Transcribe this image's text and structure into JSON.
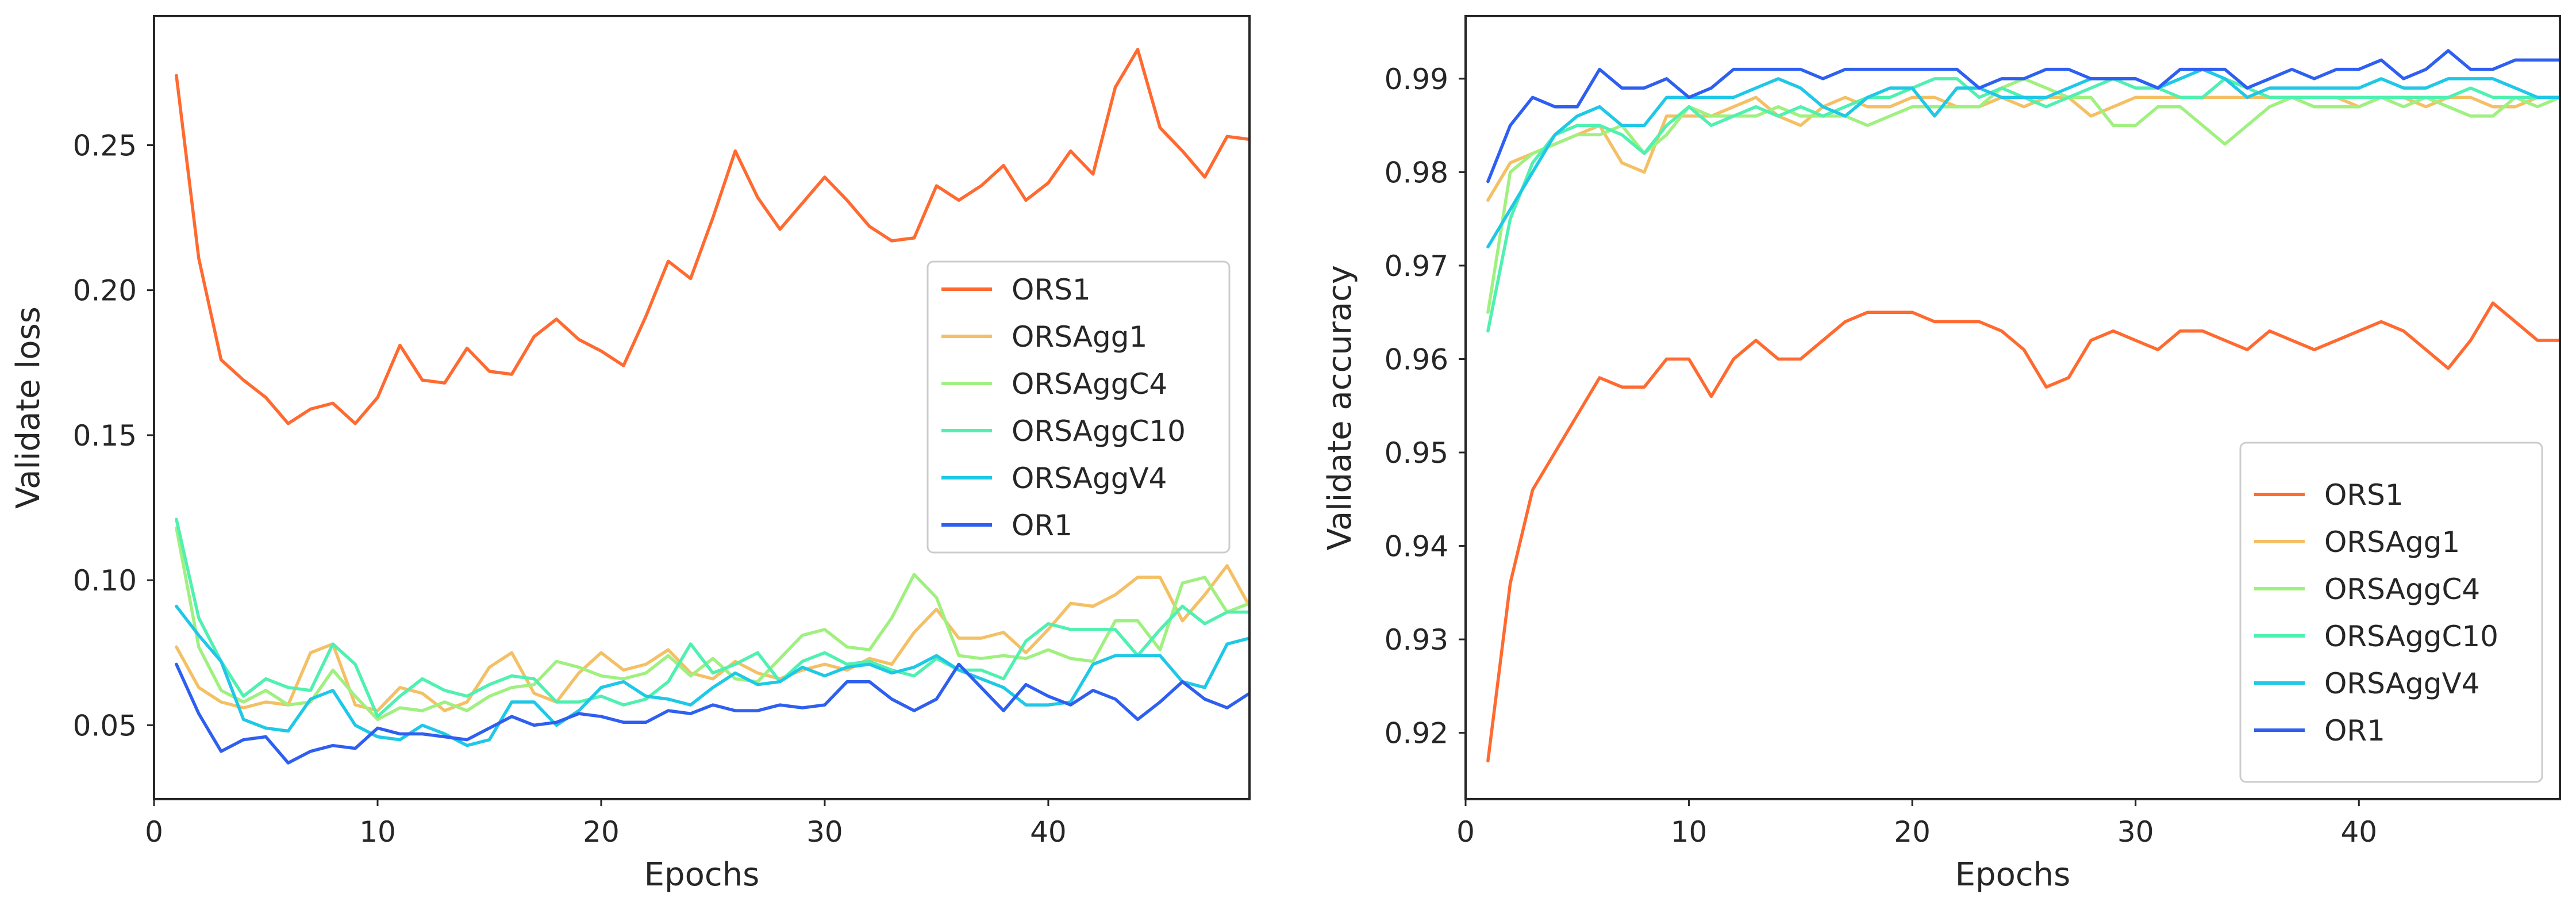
{
  "chart_data": [
    {
      "type": "line",
      "xlabel": "Epochs",
      "ylabel": "Validate loss",
      "xlim": [
        0,
        49
      ],
      "ylim": [
        0.0245,
        0.2945
      ],
      "xticks": [
        0,
        10,
        20,
        30,
        40
      ],
      "yticks": [
        0.05,
        0.1,
        0.15,
        0.2,
        0.25
      ],
      "ytick_labels": [
        "0.05",
        "0.10",
        "0.15",
        "0.20",
        "0.25"
      ],
      "grid": false,
      "legend": "center-right",
      "x": [
        1,
        2,
        3,
        4,
        5,
        6,
        7,
        8,
        9,
        10,
        11,
        12,
        13,
        14,
        15,
        16,
        17,
        18,
        19,
        20,
        21,
        22,
        23,
        24,
        25,
        26,
        27,
        28,
        29,
        30,
        31,
        32,
        33,
        34,
        35,
        36,
        37,
        38,
        39,
        40,
        41,
        42,
        43,
        44,
        45,
        46,
        47,
        48,
        49
      ],
      "series": [
        {
          "name": "ORS1",
          "color": "#ff6a30",
          "values": [
            0.274,
            0.211,
            0.176,
            0.169,
            0.163,
            0.154,
            0.159,
            0.161,
            0.154,
            0.163,
            0.181,
            0.169,
            0.168,
            0.18,
            0.172,
            0.171,
            0.184,
            0.19,
            0.183,
            0.179,
            0.174,
            0.191,
            0.21,
            0.204,
            0.225,
            0.248,
            0.232,
            0.221,
            0.23,
            0.239,
            0.231,
            0.222,
            0.217,
            0.218,
            0.236,
            0.231,
            0.236,
            0.243,
            0.231,
            0.237,
            0.248,
            0.24,
            0.27,
            0.283,
            0.256,
            0.248,
            0.239,
            0.253,
            0.252
          ]
        },
        {
          "name": "ORSAgg1",
          "color": "#f4c065",
          "values": [
            0.077,
            0.063,
            0.058,
            0.056,
            0.058,
            0.057,
            0.075,
            0.078,
            0.057,
            0.055,
            0.063,
            0.061,
            0.055,
            0.058,
            0.07,
            0.075,
            0.061,
            0.058,
            0.068,
            0.075,
            0.069,
            0.071,
            0.076,
            0.068,
            0.066,
            0.072,
            0.068,
            0.066,
            0.069,
            0.071,
            0.069,
            0.073,
            0.071,
            0.082,
            0.09,
            0.08,
            0.08,
            0.082,
            0.075,
            0.083,
            0.092,
            0.091,
            0.095,
            0.101,
            0.101,
            0.086,
            0.095,
            0.105,
            0.091
          ]
        },
        {
          "name": "ORSAggC4",
          "color": "#a0f080",
          "values": [
            0.118,
            0.077,
            0.062,
            0.058,
            0.062,
            0.057,
            0.058,
            0.069,
            0.06,
            0.052,
            0.056,
            0.055,
            0.058,
            0.055,
            0.06,
            0.063,
            0.064,
            0.072,
            0.07,
            0.067,
            0.066,
            0.068,
            0.074,
            0.067,
            0.073,
            0.066,
            0.065,
            0.073,
            0.081,
            0.083,
            0.077,
            0.076,
            0.087,
            0.102,
            0.094,
            0.074,
            0.073,
            0.074,
            0.073,
            0.076,
            0.073,
            0.072,
            0.086,
            0.086,
            0.076,
            0.099,
            0.101,
            0.089,
            0.092
          ]
        },
        {
          "name": "ORSAggC10",
          "color": "#50f0b0",
          "values": [
            0.121,
            0.087,
            0.072,
            0.06,
            0.066,
            0.063,
            0.062,
            0.078,
            0.071,
            0.053,
            0.06,
            0.066,
            0.062,
            0.06,
            0.064,
            0.067,
            0.066,
            0.058,
            0.058,
            0.06,
            0.057,
            0.059,
            0.065,
            0.078,
            0.068,
            0.071,
            0.075,
            0.065,
            0.072,
            0.075,
            0.071,
            0.072,
            0.069,
            0.067,
            0.073,
            0.069,
            0.069,
            0.066,
            0.079,
            0.085,
            0.083,
            0.083,
            0.083,
            0.074,
            0.083,
            0.091,
            0.085,
            0.089,
            0.089
          ]
        },
        {
          "name": "ORSAggV4",
          "color": "#1ec8e6",
          "values": [
            0.091,
            0.081,
            0.072,
            0.052,
            0.049,
            0.048,
            0.059,
            0.062,
            0.05,
            0.046,
            0.045,
            0.05,
            0.047,
            0.043,
            0.045,
            0.058,
            0.058,
            0.05,
            0.055,
            0.063,
            0.065,
            0.06,
            0.059,
            0.057,
            0.063,
            0.068,
            0.064,
            0.065,
            0.07,
            0.067,
            0.07,
            0.071,
            0.068,
            0.07,
            0.074,
            0.069,
            0.066,
            0.063,
            0.057,
            0.057,
            0.058,
            0.071,
            0.074,
            0.074,
            0.074,
            0.065,
            0.063,
            0.078,
            0.08
          ]
        },
        {
          "name": "OR1",
          "color": "#2e5ff0",
          "values": [
            0.071,
            0.054,
            0.041,
            0.045,
            0.046,
            0.037,
            0.041,
            0.043,
            0.042,
            0.049,
            0.047,
            0.047,
            0.046,
            0.045,
            0.049,
            0.053,
            0.05,
            0.051,
            0.054,
            0.053,
            0.051,
            0.051,
            0.055,
            0.054,
            0.057,
            0.055,
            0.055,
            0.057,
            0.056,
            0.057,
            0.065,
            0.065,
            0.059,
            0.055,
            0.059,
            0.071,
            0.063,
            0.055,
            0.064,
            0.06,
            0.057,
            0.062,
            0.059,
            0.052,
            0.058,
            0.065,
            0.059,
            0.056,
            0.061
          ]
        }
      ]
    },
    {
      "type": "line",
      "xlabel": "Epochs",
      "ylabel": "Validate accuracy",
      "xlim": [
        0,
        49
      ],
      "ylim": [
        0.9129,
        0.9967
      ],
      "xticks": [
        0,
        10,
        20,
        30,
        40
      ],
      "yticks": [
        0.92,
        0.93,
        0.94,
        0.95,
        0.96,
        0.97,
        0.98,
        0.99
      ],
      "ytick_labels": [
        "0.92",
        "0.93",
        "0.94",
        "0.95",
        "0.96",
        "0.97",
        "0.98",
        "0.99"
      ],
      "grid": false,
      "legend": "lower-right",
      "x": [
        1,
        2,
        3,
        4,
        5,
        6,
        7,
        8,
        9,
        10,
        11,
        12,
        13,
        14,
        15,
        16,
        17,
        18,
        19,
        20,
        21,
        22,
        23,
        24,
        25,
        26,
        27,
        28,
        29,
        30,
        31,
        32,
        33,
        34,
        35,
        36,
        37,
        38,
        39,
        40,
        41,
        42,
        43,
        44,
        45,
        46,
        47,
        48,
        49
      ],
      "series": [
        {
          "name": "ORS1",
          "color": "#ff6a30",
          "values": [
            0.917,
            0.936,
            0.946,
            0.95,
            0.954,
            0.958,
            0.957,
            0.957,
            0.96,
            0.96,
            0.956,
            0.96,
            0.962,
            0.96,
            0.96,
            0.962,
            0.964,
            0.965,
            0.965,
            0.965,
            0.964,
            0.964,
            0.964,
            0.963,
            0.961,
            0.957,
            0.958,
            0.962,
            0.963,
            0.962,
            0.961,
            0.963,
            0.963,
            0.962,
            0.961,
            0.963,
            0.962,
            0.961,
            0.962,
            0.963,
            0.964,
            0.963,
            0.961,
            0.959,
            0.962,
            0.966,
            0.964,
            0.962,
            0.962
          ]
        },
        {
          "name": "ORSAgg1",
          "color": "#f4c065",
          "values": [
            0.977,
            0.981,
            0.982,
            0.983,
            0.984,
            0.985,
            0.981,
            0.98,
            0.986,
            0.986,
            0.986,
            0.987,
            0.988,
            0.986,
            0.985,
            0.987,
            0.988,
            0.987,
            0.987,
            0.988,
            0.988,
            0.987,
            0.987,
            0.988,
            0.987,
            0.988,
            0.988,
            0.986,
            0.987,
            0.988,
            0.988,
            0.988,
            0.988,
            0.988,
            0.988,
            0.988,
            0.988,
            0.988,
            0.988,
            0.987,
            0.988,
            0.988,
            0.987,
            0.988,
            0.988,
            0.987,
            0.987,
            0.988,
            0.988
          ]
        },
        {
          "name": "ORSAggC4",
          "color": "#a0f080",
          "values": [
            0.965,
            0.98,
            0.982,
            0.983,
            0.984,
            0.984,
            0.985,
            0.982,
            0.984,
            0.987,
            0.986,
            0.986,
            0.986,
            0.987,
            0.986,
            0.986,
            0.986,
            0.985,
            0.986,
            0.987,
            0.987,
            0.987,
            0.987,
            0.989,
            0.99,
            0.989,
            0.988,
            0.988,
            0.985,
            0.985,
            0.987,
            0.987,
            0.985,
            0.983,
            0.985,
            0.987,
            0.988,
            0.987,
            0.987,
            0.987,
            0.988,
            0.987,
            0.988,
            0.987,
            0.986,
            0.986,
            0.988,
            0.987,
            0.988
          ]
        },
        {
          "name": "ORSAggC10",
          "color": "#50f0b0",
          "values": [
            0.963,
            0.975,
            0.981,
            0.984,
            0.985,
            0.985,
            0.984,
            0.982,
            0.985,
            0.987,
            0.985,
            0.986,
            0.987,
            0.986,
            0.987,
            0.986,
            0.987,
            0.988,
            0.988,
            0.989,
            0.99,
            0.99,
            0.988,
            0.989,
            0.988,
            0.987,
            0.988,
            0.989,
            0.99,
            0.989,
            0.989,
            0.988,
            0.988,
            0.99,
            0.989,
            0.988,
            0.988,
            0.988,
            0.988,
            0.988,
            0.988,
            0.988,
            0.988,
            0.988,
            0.989,
            0.988,
            0.988,
            0.988,
            0.988
          ]
        },
        {
          "name": "ORSAggV4",
          "color": "#1ec8e6",
          "values": [
            0.972,
            0.976,
            0.98,
            0.984,
            0.986,
            0.987,
            0.985,
            0.985,
            0.988,
            0.988,
            0.988,
            0.988,
            0.989,
            0.99,
            0.989,
            0.987,
            0.986,
            0.988,
            0.989,
            0.989,
            0.986,
            0.989,
            0.989,
            0.988,
            0.988,
            0.988,
            0.989,
            0.99,
            0.99,
            0.99,
            0.989,
            0.99,
            0.991,
            0.99,
            0.988,
            0.989,
            0.989,
            0.989,
            0.989,
            0.989,
            0.99,
            0.989,
            0.989,
            0.99,
            0.99,
            0.99,
            0.989,
            0.988,
            0.988
          ]
        },
        {
          "name": "OR1",
          "color": "#2e5ff0",
          "values": [
            0.979,
            0.985,
            0.988,
            0.987,
            0.987,
            0.991,
            0.989,
            0.989,
            0.99,
            0.988,
            0.989,
            0.991,
            0.991,
            0.991,
            0.991,
            0.99,
            0.991,
            0.991,
            0.991,
            0.991,
            0.991,
            0.991,
            0.989,
            0.99,
            0.99,
            0.991,
            0.991,
            0.99,
            0.99,
            0.99,
            0.989,
            0.991,
            0.991,
            0.991,
            0.989,
            0.99,
            0.991,
            0.99,
            0.991,
            0.991,
            0.992,
            0.99,
            0.991,
            0.993,
            0.991,
            0.991,
            0.992,
            0.992,
            0.992
          ]
        }
      ]
    }
  ]
}
